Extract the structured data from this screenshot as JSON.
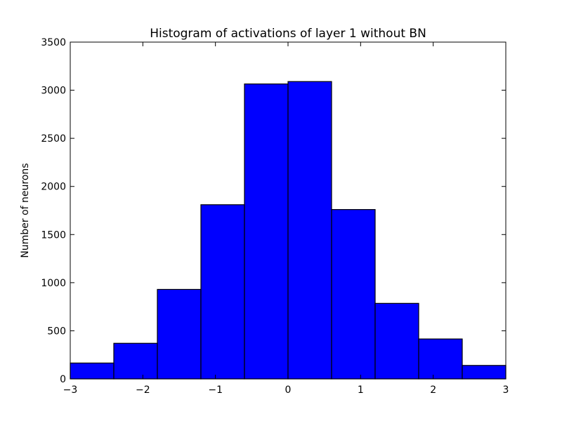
{
  "chart_data": {
    "type": "bar",
    "title": "Histogram of activations of layer 1  without BN",
    "xlabel": "",
    "ylabel": "Number of neurons",
    "xlim": [
      -3,
      3
    ],
    "ylim": [
      0,
      3500
    ],
    "bin_edges": [
      -3,
      -2.4,
      -1.8,
      -1.2,
      -0.6,
      0,
      0.6,
      1.2,
      1.8,
      2.4,
      3
    ],
    "values": [
      165,
      370,
      930,
      1810,
      3065,
      3090,
      1760,
      785,
      415,
      140
    ],
    "x_ticks": [
      -3,
      -2,
      -1,
      0,
      1,
      2,
      3
    ],
    "x_tick_labels": [
      "−3",
      "−2",
      "−1",
      "0",
      "1",
      "2",
      "3"
    ],
    "y_ticks": [
      0,
      500,
      1000,
      1500,
      2000,
      2500,
      3000,
      3500
    ],
    "y_tick_labels": [
      "0",
      "500",
      "1000",
      "1500",
      "2000",
      "2500",
      "3000",
      "3500"
    ],
    "bar_color": "#0000ff",
    "edge_color": "#000000",
    "grid": false,
    "legend": "none"
  }
}
